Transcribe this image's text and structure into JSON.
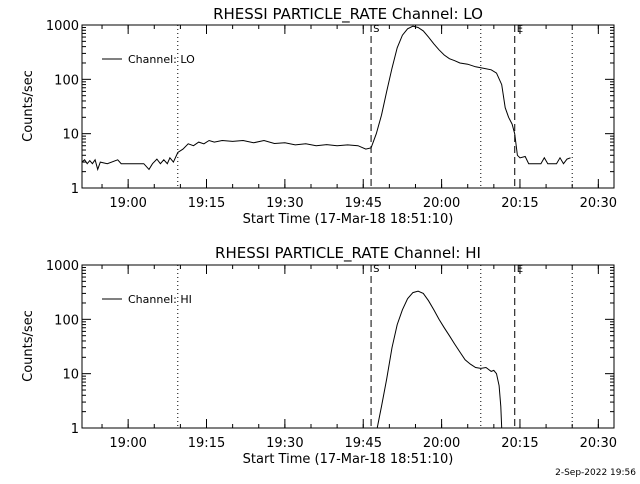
{
  "footer": {
    "timestamp": "2-Sep-2022 19:56"
  },
  "chart_data": [
    {
      "type": "line",
      "title": "RHESSI PARTICLE_RATE Channel: LO",
      "xlabel": "Start Time (17-Mar-18 18:51:10)",
      "ylabel": "Counts/sec",
      "y_scale": "log",
      "xlim": [
        "18:51:10",
        "20:33:00"
      ],
      "ylim": [
        1,
        1000
      ],
      "x_ticks": [
        "19:00",
        "19:15",
        "19:30",
        "19:45",
        "20:00",
        "20:15",
        "20:30"
      ],
      "y_ticks": [
        "1",
        "10",
        "100",
        "1000"
      ],
      "legend": {
        "position": "top-left",
        "entries": [
          "Channel: LO"
        ]
      },
      "markers": [
        {
          "time": "19:09:30",
          "style": "dotted",
          "label": ""
        },
        {
          "time": "19:46:30",
          "style": "dashed",
          "label": "S"
        },
        {
          "time": "20:07:30",
          "style": "dotted",
          "label": ""
        },
        {
          "time": "20:14:00",
          "style": "dashed",
          "label": "E"
        },
        {
          "time": "20:25:00",
          "style": "dotted",
          "label": ""
        }
      ],
      "series": [
        {
          "name": "Channel: LO",
          "points": [
            [
              "18:51:10",
              3.0
            ],
            [
              "18:51:40",
              3.3
            ],
            [
              "18:52:10",
              2.8
            ],
            [
              "18:52:40",
              3.2
            ],
            [
              "18:53:10",
              2.8
            ],
            [
              "18:53:40",
              3.3
            ],
            [
              "18:54:10",
              2.2
            ],
            [
              "18:54:40",
              3.0
            ],
            [
              "18:56:00",
              2.8
            ],
            [
              "18:58:00",
              3.3
            ],
            [
              "18:58:40",
              2.8
            ],
            [
              "19:00:00",
              2.8
            ],
            [
              "19:03:00",
              2.8
            ],
            [
              "19:04:00",
              2.2
            ],
            [
              "19:04:40",
              2.8
            ],
            [
              "19:05:30",
              3.4
            ],
            [
              "19:06:10",
              2.8
            ],
            [
              "19:06:50",
              3.3
            ],
            [
              "19:07:30",
              2.8
            ],
            [
              "19:08:00",
              3.6
            ],
            [
              "19:08:40",
              3.0
            ],
            [
              "19:09:30",
              4.5
            ],
            [
              "19:10:30",
              5.2
            ],
            [
              "19:11:30",
              6.5
            ],
            [
              "19:12:30",
              6.0
            ],
            [
              "19:13:30",
              7.0
            ],
            [
              "19:14:30",
              6.5
            ],
            [
              "19:15:30",
              7.5
            ],
            [
              "19:16:30",
              7.0
            ],
            [
              "19:18:00",
              7.5
            ],
            [
              "19:20:00",
              7.2
            ],
            [
              "19:22:00",
              7.5
            ],
            [
              "19:24:00",
              6.8
            ],
            [
              "19:26:00",
              7.5
            ],
            [
              "19:28:00",
              6.6
            ],
            [
              "19:30:00",
              6.8
            ],
            [
              "19:32:00",
              6.2
            ],
            [
              "19:34:00",
              6.5
            ],
            [
              "19:36:00",
              6.0
            ],
            [
              "19:38:00",
              6.3
            ],
            [
              "19:40:00",
              6.0
            ],
            [
              "19:42:00",
              6.2
            ],
            [
              "19:44:00",
              6.0
            ],
            [
              "19:45:30",
              5.2
            ],
            [
              "19:46:30",
              5.5
            ],
            [
              "19:47:30",
              10
            ],
            [
              "19:48:30",
              22
            ],
            [
              "19:49:30",
              60
            ],
            [
              "19:50:30",
              160
            ],
            [
              "19:51:30",
              380
            ],
            [
              "19:52:30",
              650
            ],
            [
              "19:53:30",
              850
            ],
            [
              "19:54:30",
              950
            ],
            [
              "19:55:30",
              900
            ],
            [
              "19:56:30",
              780
            ],
            [
              "19:57:30",
              600
            ],
            [
              "19:58:30",
              450
            ],
            [
              "19:59:30",
              350
            ],
            [
              "20:00:30",
              280
            ],
            [
              "20:01:30",
              240
            ],
            [
              "20:02:30",
              220
            ],
            [
              "20:03:30",
              200
            ],
            [
              "20:05:00",
              190
            ],
            [
              "20:06:30",
              170
            ],
            [
              "20:08:00",
              160
            ],
            [
              "20:09:30",
              150
            ],
            [
              "20:10:30",
              130
            ],
            [
              "20:11:30",
              80
            ],
            [
              "20:12:10",
              30
            ],
            [
              "20:12:50",
              20
            ],
            [
              "20:13:30",
              15
            ],
            [
              "20:14:00",
              10
            ],
            [
              "20:14:30",
              4.0
            ],
            [
              "20:15:00",
              3.6
            ],
            [
              "20:16:00",
              3.8
            ],
            [
              "20:16:40",
              2.8
            ],
            [
              "20:19:00",
              2.8
            ],
            [
              "20:19:40",
              3.6
            ],
            [
              "20:20:20",
              2.8
            ],
            [
              "20:22:00",
              2.8
            ],
            [
              "20:22:40",
              3.6
            ],
            [
              "20:23:20",
              2.8
            ],
            [
              "20:24:00",
              3.4
            ],
            [
              "20:24:40",
              3.6
            ]
          ]
        }
      ]
    },
    {
      "type": "line",
      "title": "RHESSI PARTICLE_RATE Channel: HI",
      "xlabel": "Start Time (17-Mar-18 18:51:10)",
      "ylabel": "Counts/sec",
      "y_scale": "log",
      "xlim": [
        "18:51:10",
        "20:33:00"
      ],
      "ylim": [
        1,
        1000
      ],
      "x_ticks": [
        "19:00",
        "19:15",
        "19:30",
        "19:45",
        "20:00",
        "20:15",
        "20:30"
      ],
      "y_ticks": [
        "1",
        "10",
        "100",
        "1000"
      ],
      "legend": {
        "position": "top-left",
        "entries": [
          "Channel: HI"
        ]
      },
      "markers": [
        {
          "time": "19:09:30",
          "style": "dotted",
          "label": ""
        },
        {
          "time": "19:46:30",
          "style": "dashed",
          "label": "S"
        },
        {
          "time": "20:07:30",
          "style": "dotted",
          "label": ""
        },
        {
          "time": "20:14:00",
          "style": "dashed",
          "label": "E"
        },
        {
          "time": "20:25:00",
          "style": "dotted",
          "label": ""
        }
      ],
      "series": [
        {
          "name": "Channel: HI",
          "points": [
            [
              "19:47:40",
              1.0
            ],
            [
              "19:48:30",
              2.5
            ],
            [
              "19:49:30",
              8
            ],
            [
              "19:50:30",
              30
            ],
            [
              "19:51:30",
              80
            ],
            [
              "19:52:30",
              150
            ],
            [
              "19:53:30",
              240
            ],
            [
              "19:54:30",
              310
            ],
            [
              "19:55:30",
              330
            ],
            [
              "19:56:30",
              300
            ],
            [
              "19:57:30",
              220
            ],
            [
              "19:58:30",
              150
            ],
            [
              "19:59:30",
              100
            ],
            [
              "20:00:30",
              70
            ],
            [
              "20:01:30",
              50
            ],
            [
              "20:02:30",
              35
            ],
            [
              "20:03:30",
              25
            ],
            [
              "20:04:30",
              18
            ],
            [
              "20:05:30",
              15
            ],
            [
              "20:06:30",
              13
            ],
            [
              "20:07:30",
              12.5
            ],
            [
              "20:08:30",
              13
            ],
            [
              "20:09:30",
              11
            ],
            [
              "20:10:00",
              11.5
            ],
            [
              "20:10:30",
              10
            ],
            [
              "20:11:00",
              6
            ],
            [
              "20:11:20",
              2.5
            ],
            [
              "20:11:30",
              1.0
            ]
          ]
        }
      ]
    }
  ]
}
